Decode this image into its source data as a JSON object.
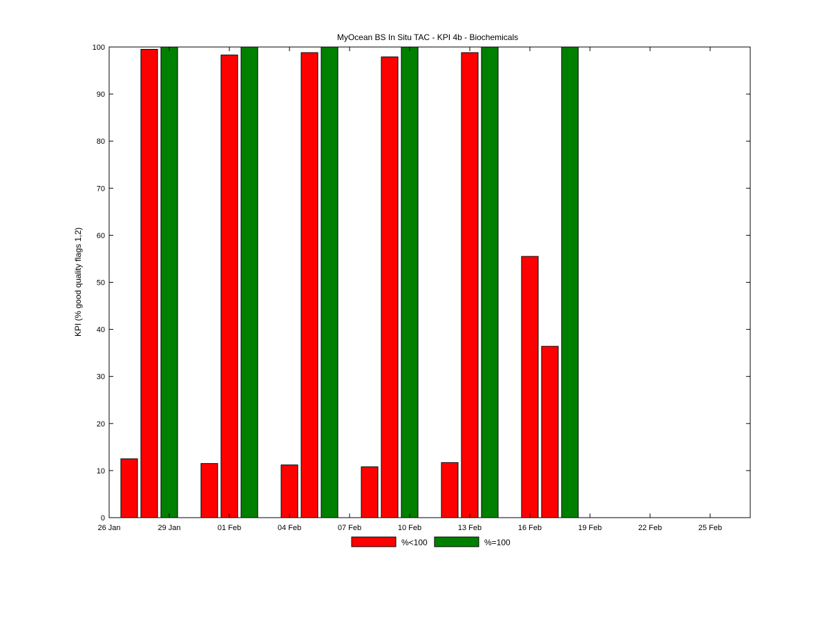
{
  "chart_data": {
    "type": "bar",
    "title": "MyOcean  BS In Situ TAC - KPI 4b - Biochemicals",
    "xlabel": "",
    "ylabel": "KPI (% good quality flags 1,2)",
    "xlim": [
      "2014-01-26",
      "2014-02-27"
    ],
    "ylim": [
      0,
      100
    ],
    "yticks": [
      0,
      10,
      20,
      30,
      40,
      50,
      60,
      70,
      80,
      90,
      100
    ],
    "xticks": [
      {
        "date": "2014-01-26",
        "label": "26 Jan"
      },
      {
        "date": "2014-01-29",
        "label": "29 Jan"
      },
      {
        "date": "2014-02-01",
        "label": "01 Feb"
      },
      {
        "date": "2014-02-04",
        "label": "04 Feb"
      },
      {
        "date": "2014-02-07",
        "label": "07 Feb"
      },
      {
        "date": "2014-02-10",
        "label": "10 Feb"
      },
      {
        "date": "2014-02-13",
        "label": "13 Feb"
      },
      {
        "date": "2014-02-16",
        "label": "16 Feb"
      },
      {
        "date": "2014-02-19",
        "label": "19 Feb"
      },
      {
        "date": "2014-02-22",
        "label": "22 Feb"
      },
      {
        "date": "2014-02-25",
        "label": "25 Feb"
      }
    ],
    "legend": {
      "placement": "bottom-center",
      "entries": [
        {
          "label": "%<100",
          "color": "#ff0000"
        },
        {
          "label": "%=100",
          "color": "#008000"
        }
      ]
    },
    "series": [
      {
        "name": "%<100",
        "color": "#ff0000",
        "points": [
          {
            "date": "2014-01-27",
            "value": 12.5
          },
          {
            "date": "2014-01-28",
            "value": 99.5
          },
          {
            "date": "2014-01-31",
            "value": 11.5
          },
          {
            "date": "2014-02-01",
            "value": 98.3
          },
          {
            "date": "2014-02-04",
            "value": 11.2
          },
          {
            "date": "2014-02-05",
            "value": 98.8
          },
          {
            "date": "2014-02-08",
            "value": 10.8
          },
          {
            "date": "2014-02-09",
            "value": 97.9
          },
          {
            "date": "2014-02-12",
            "value": 11.7
          },
          {
            "date": "2014-02-13",
            "value": 98.8
          },
          {
            "date": "2014-02-16",
            "value": 55.5
          },
          {
            "date": "2014-02-17",
            "value": 36.4
          }
        ]
      },
      {
        "name": "%=100",
        "color": "#008000",
        "points": [
          {
            "date": "2014-01-29",
            "value": 100
          },
          {
            "date": "2014-02-02",
            "value": 100
          },
          {
            "date": "2014-02-06",
            "value": 100
          },
          {
            "date": "2014-02-10",
            "value": 100
          },
          {
            "date": "2014-02-14",
            "value": 100
          },
          {
            "date": "2014-02-18",
            "value": 100
          }
        ]
      }
    ]
  }
}
